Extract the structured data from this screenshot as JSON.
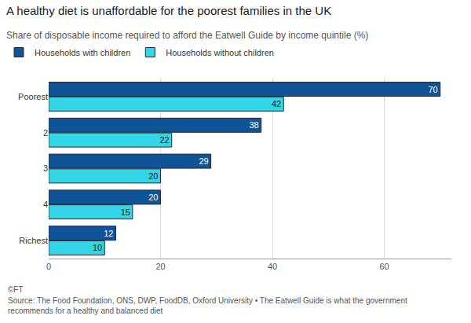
{
  "chart_data": {
    "type": "bar",
    "orientation": "horizontal",
    "title": "A healthy diet is unaffordable for the poorest families in the UK",
    "subtitle": "Share of disposable income required to afford the Eatwell Guide by income quintile (%)",
    "categories": [
      "Poorest",
      "2",
      "3",
      "4",
      "Richest"
    ],
    "series": [
      {
        "name": "Households with children",
        "color": "#0f5499",
        "values": [
          70,
          38,
          29,
          20,
          12
        ]
      },
      {
        "name": "Households without children",
        "color": "#33d6e6",
        "values": [
          42,
          22,
          20,
          15,
          10
        ]
      }
    ],
    "xlim": [
      0,
      72
    ],
    "xticks": [
      0,
      20,
      40,
      60
    ],
    "grid": true,
    "legend": "top left",
    "data_labels": true,
    "annotations": [
      "©FT",
      "Source: The Food Foundation, ONS, DWP, FoodDB, Oxford University • The Eatwell Guide is what the government recommends for a healthy and balanced diet"
    ]
  }
}
